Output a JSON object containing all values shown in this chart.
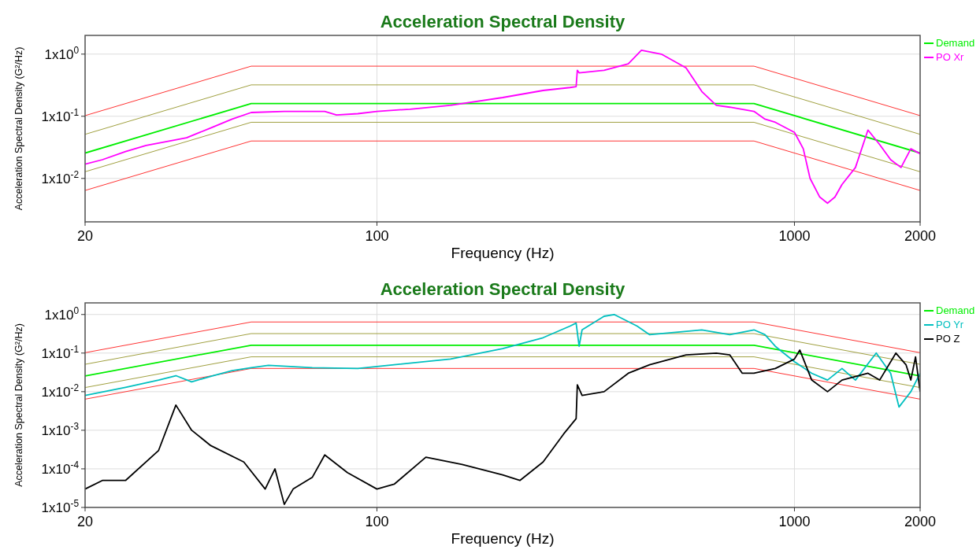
{
  "chart_data": [
    {
      "type": "line",
      "title": "Acceleration Spectral Density",
      "xlabel": "Frequency (Hz)",
      "ylabel": "Acceleration Spectral Density (G²/Hz)",
      "log": "xy",
      "grid": true,
      "legend": "top right",
      "marker": "none",
      "line_style": "solid",
      "xlim": [
        20,
        2000
      ],
      "xticks": [
        20,
        100,
        1000,
        2000
      ],
      "ylim": [
        0.002,
        2
      ],
      "yticks": [
        {
          "value": 0.01,
          "label": "1x10$^{-2}$"
        },
        {
          "value": 0.1,
          "label": "1x10$^{-1}$"
        },
        {
          "value": 1,
          "label": "1x10$^{0}$"
        }
      ],
      "series": [
        {
          "color": "#ff3333",
          "x": [
            20,
            50,
            800,
            2000
          ],
          "values": [
            0.0064,
            0.04,
            0.04,
            0.0064
          ]
        },
        {
          "color": "#ff3333",
          "x": [
            20,
            50,
            800,
            2000
          ],
          "values": [
            0.1024,
            0.64,
            0.64,
            0.1024
          ]
        },
        {
          "color": "#a0a040",
          "x": [
            20,
            50,
            800,
            2000
          ],
          "values": [
            0.0128,
            0.08,
            0.08,
            0.0128
          ]
        },
        {
          "color": "#a0a040",
          "x": [
            20,
            50,
            800,
            2000
          ],
          "values": [
            0.0512,
            0.32,
            0.32,
            0.0512
          ]
        },
        {
          "name": "Demand",
          "color": "#00ee00",
          "x": [
            20,
            50,
            800,
            2000
          ],
          "values": [
            0.0256,
            0.16,
            0.16,
            0.0256
          ]
        },
        {
          "name": "PO Xr",
          "color": "#ff00ff",
          "x": [
            20,
            22,
            25,
            28,
            30,
            35,
            40,
            45,
            50,
            60,
            70,
            75,
            80,
            90,
            100,
            120,
            150,
            200,
            250,
            290,
            300,
            302,
            305,
            350,
            400,
            430,
            480,
            550,
            600,
            650,
            700,
            800,
            850,
            900,
            1000,
            1050,
            1090,
            1150,
            1200,
            1250,
            1300,
            1400,
            1500,
            1600,
            1700,
            1800,
            1900,
            2000
          ],
          "values": [
            0.017,
            0.02,
            0.027,
            0.034,
            0.037,
            0.045,
            0.065,
            0.09,
            0.115,
            0.12,
            0.12,
            0.12,
            0.105,
            0.11,
            0.12,
            0.13,
            0.15,
            0.2,
            0.26,
            0.29,
            0.3,
            0.55,
            0.5,
            0.55,
            0.7,
            1.15,
            1.0,
            0.6,
            0.25,
            0.15,
            0.14,
            0.12,
            0.09,
            0.08,
            0.055,
            0.03,
            0.01,
            0.005,
            0.004,
            0.005,
            0.008,
            0.015,
            0.06,
            0.035,
            0.02,
            0.015,
            0.03,
            0.025
          ]
        }
      ]
    },
    {
      "type": "line",
      "title": "Acceleration Spectral Density",
      "xlabel": "Frequency (Hz)",
      "ylabel": "Acceleration Spectral Density (G²/Hz)",
      "log": "xy",
      "grid": true,
      "legend": "top right",
      "marker": "none",
      "line_style": "solid",
      "xlim": [
        20,
        2000
      ],
      "xticks": [
        20,
        100,
        1000,
        2000
      ],
      "ylim": [
        1e-05,
        2
      ],
      "yticks": [
        {
          "value": 1e-05,
          "label": "1x10$^{-5}$"
        },
        {
          "value": 0.0001,
          "label": "1x10$^{-4}$"
        },
        {
          "value": 0.001,
          "label": "1x10$^{-3}$"
        },
        {
          "value": 0.01,
          "label": "1x10$^{-2}$"
        },
        {
          "value": 0.1,
          "label": "1x10$^{-1}$"
        },
        {
          "value": 1,
          "label": "1x10$^{0}$"
        }
      ],
      "series": [
        {
          "color": "#ff3333",
          "x": [
            20,
            50,
            800,
            2000
          ],
          "values": [
            0.0064,
            0.04,
            0.04,
            0.0064
          ]
        },
        {
          "color": "#ff3333",
          "x": [
            20,
            50,
            800,
            2000
          ],
          "values": [
            0.1024,
            0.64,
            0.64,
            0.1024
          ]
        },
        {
          "color": "#a0a040",
          "x": [
            20,
            50,
            800,
            2000
          ],
          "values": [
            0.0128,
            0.08,
            0.08,
            0.0128
          ]
        },
        {
          "color": "#a0a040",
          "x": [
            20,
            50,
            800,
            2000
          ],
          "values": [
            0.0512,
            0.32,
            0.32,
            0.0512
          ]
        },
        {
          "name": "Demand",
          "color": "#00ee00",
          "x": [
            20,
            50,
            800,
            2000
          ],
          "values": [
            0.0256,
            0.16,
            0.16,
            0.0256
          ]
        },
        {
          "name": "PO Yr",
          "color": "#00bfbf",
          "x": [
            20,
            25,
            30,
            33,
            36,
            40,
            45,
            50,
            55,
            70,
            90,
            100,
            150,
            200,
            250,
            290,
            300,
            305,
            310,
            350,
            370,
            420,
            450,
            600,
            700,
            800,
            850,
            900,
            1000,
            1100,
            1200,
            1300,
            1400,
            1570,
            1700,
            1780,
            1900,
            2000
          ],
          "values": [
            0.008,
            0.013,
            0.02,
            0.026,
            0.018,
            0.025,
            0.035,
            0.042,
            0.048,
            0.042,
            0.04,
            0.045,
            0.07,
            0.13,
            0.25,
            0.5,
            0.6,
            0.15,
            0.4,
            0.9,
            1.0,
            0.5,
            0.3,
            0.4,
            0.3,
            0.4,
            0.3,
            0.15,
            0.06,
            0.03,
            0.02,
            0.04,
            0.02,
            0.1,
            0.03,
            0.004,
            0.01,
            0.03
          ]
        },
        {
          "name": "PO Z",
          "color": "#000000",
          "x": [
            20,
            22,
            25,
            30,
            33,
            36,
            40,
            48,
            54,
            57,
            60,
            63,
            70,
            75,
            85,
            100,
            110,
            131,
            160,
            200,
            220,
            250,
            280,
            300,
            302,
            310,
            350,
            400,
            450,
            550,
            650,
            700,
            750,
            800,
            900,
            1000,
            1030,
            1100,
            1200,
            1300,
            1500,
            1600,
            1750,
            1850,
            1900,
            1950,
            2000
          ],
          "values": [
            3e-05,
            5e-05,
            5e-05,
            0.0003,
            0.0045,
            0.001,
            0.0004,
            0.00015,
            3e-05,
            0.0001,
            1.2e-05,
            3e-05,
            6e-05,
            0.00023,
            8e-05,
            3e-05,
            4e-05,
            0.0002,
            0.00013,
            7e-05,
            5e-05,
            0.00015,
            0.0008,
            0.002,
            0.015,
            0.008,
            0.01,
            0.03,
            0.05,
            0.09,
            0.1,
            0.09,
            0.03,
            0.03,
            0.04,
            0.07,
            0.12,
            0.02,
            0.01,
            0.02,
            0.03,
            0.02,
            0.1,
            0.05,
            0.02,
            0.08,
            0.01
          ]
        }
      ]
    }
  ]
}
